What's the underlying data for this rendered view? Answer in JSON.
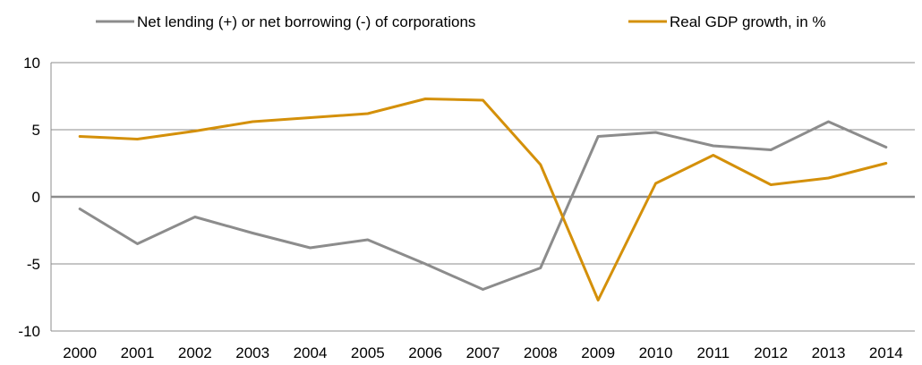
{
  "chart_data": {
    "type": "line",
    "title": "",
    "xlabel": "",
    "ylabel": "",
    "categories": [
      "2000",
      "2001",
      "2002",
      "2003",
      "2004",
      "2005",
      "2006",
      "2007",
      "2008",
      "2009",
      "2010",
      "2011",
      "2012",
      "2013",
      "2014"
    ],
    "ylim": [
      -10,
      10
    ],
    "yticks": [
      10,
      5,
      0,
      -5,
      -10
    ],
    "grid": true,
    "legend_position": "top",
    "series": [
      {
        "name": "Net lending (+) or net borrowing (-) of corporations",
        "color": "#8c8c8c",
        "values": [
          -0.9,
          -3.5,
          -1.5,
          -2.7,
          -3.8,
          -3.2,
          -5.0,
          -6.9,
          -5.3,
          4.5,
          4.8,
          3.8,
          3.5,
          5.6,
          3.7
        ]
      },
      {
        "name": "Real GDP growth, in %",
        "color": "#d4900a",
        "values": [
          4.5,
          4.3,
          4.9,
          5.6,
          5.9,
          6.2,
          7.3,
          7.2,
          2.4,
          -7.7,
          1.0,
          3.1,
          0.9,
          1.4,
          2.5
        ]
      }
    ]
  }
}
